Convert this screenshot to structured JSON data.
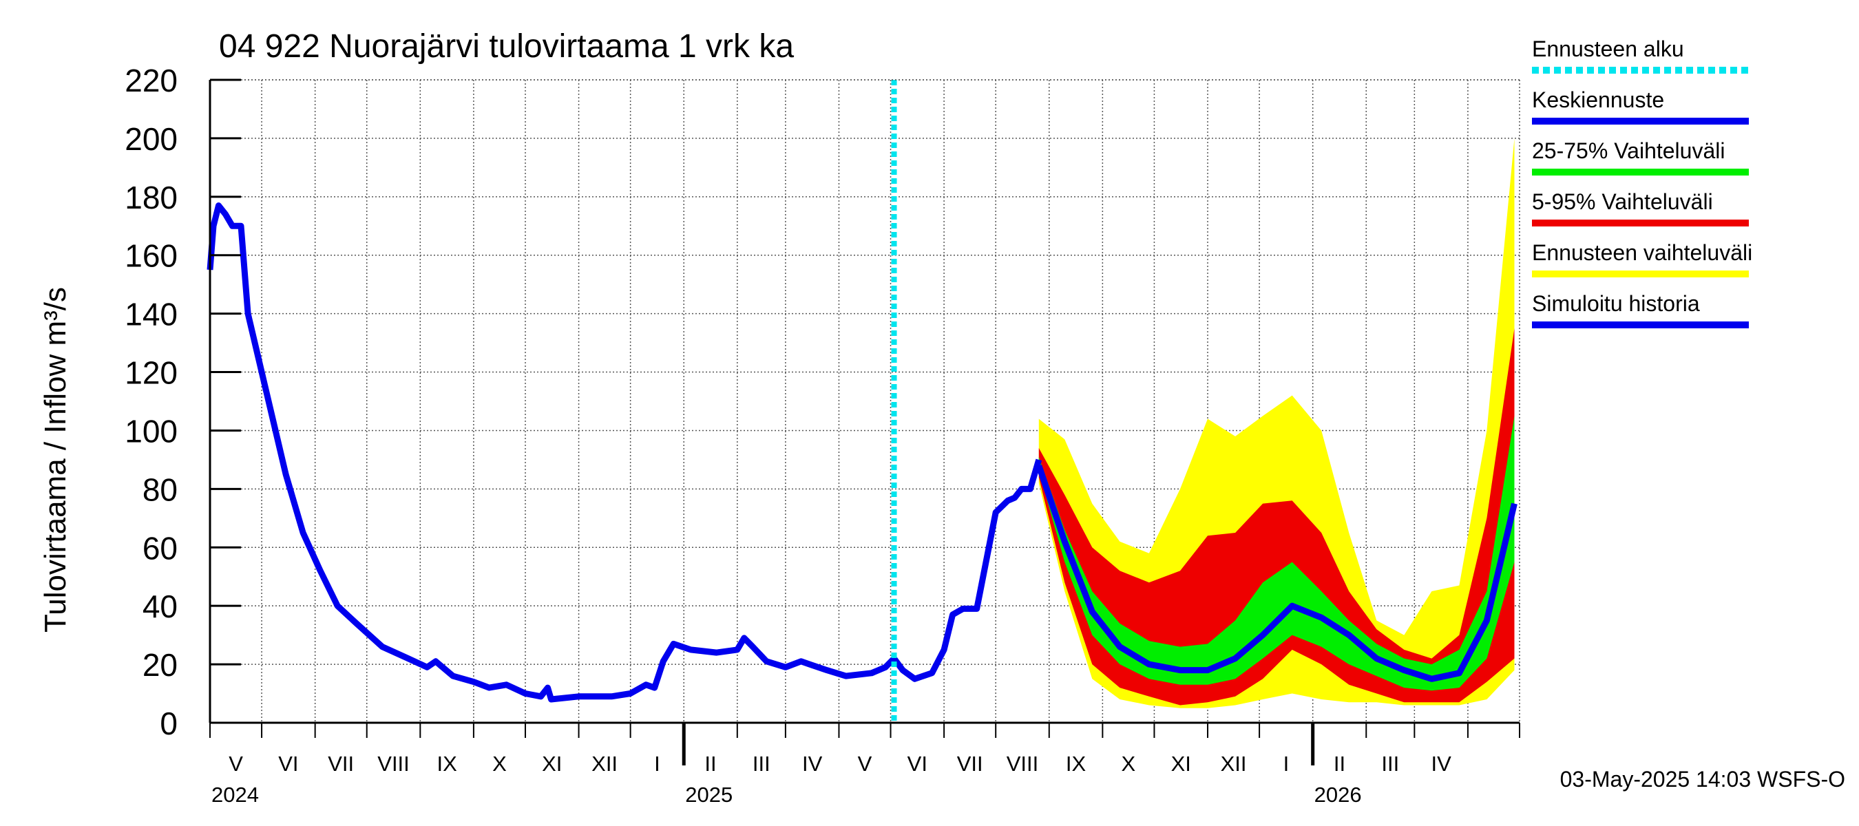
{
  "chart_data": {
    "type": "line",
    "title": "04 922 Nuorajärvi tulovirtaama 1 vrk ka",
    "ylabel": "Tulovirtaama / Inflow    m³/s",
    "ylim": [
      0,
      220
    ],
    "yticks": [
      0,
      20,
      40,
      60,
      80,
      100,
      120,
      140,
      160,
      180,
      200,
      220
    ],
    "xlim": [
      "2024-04-01",
      "2026-05-01"
    ],
    "grid": true,
    "legend_placement": "right",
    "month_labels": [
      "V",
      "VI",
      "VII",
      "VIII",
      "IX",
      "X",
      "XI",
      "XII",
      "I",
      "II",
      "III",
      "IV",
      "V",
      "VI",
      "VII",
      "VIII",
      "IX",
      "X",
      "XI",
      "XII",
      "I",
      "II",
      "III",
      "IV"
    ],
    "year_labels": [
      "2024",
      "2025",
      "2026"
    ],
    "forecast_start": "2025-05-03",
    "footer": "03-May-2025 14:03 WSFS-O",
    "legend": [
      {
        "label": "Ennusteen alku",
        "color": "#00e5ee",
        "style": "dotted"
      },
      {
        "label": "Keskiennuste",
        "color": "#0000ee",
        "style": "solid"
      },
      {
        "label": "25-75% Vaihteluväli",
        "color": "#00ee00",
        "style": "solid"
      },
      {
        "label": "5-95% Vaihteluväli",
        "color": "#ee0000",
        "style": "solid"
      },
      {
        "label": "Ennusteen vaihteluväli",
        "color": "#ffff00",
        "style": "solid"
      },
      {
        "label": "Simuloitu historia",
        "color": "#0000ee",
        "style": "solid"
      }
    ],
    "history": {
      "name": "Simuloitu historia",
      "color": "#0000ee",
      "points": [
        [
          "2024-04-01",
          155
        ],
        [
          "2024-04-03",
          170
        ],
        [
          "2024-04-06",
          177
        ],
        [
          "2024-04-10",
          174
        ],
        [
          "2024-04-14",
          170
        ],
        [
          "2024-04-19",
          170
        ],
        [
          "2024-04-23",
          140
        ],
        [
          "2024-05-05",
          110
        ],
        [
          "2024-05-15",
          85
        ],
        [
          "2024-05-25",
          65
        ],
        [
          "2024-06-04",
          52
        ],
        [
          "2024-06-14",
          40
        ],
        [
          "2024-06-25",
          34
        ],
        [
          "2024-07-10",
          26
        ],
        [
          "2024-07-25",
          22
        ],
        [
          "2024-08-05",
          19
        ],
        [
          "2024-08-10",
          21
        ],
        [
          "2024-08-20",
          16
        ],
        [
          "2024-09-01",
          14
        ],
        [
          "2024-09-10",
          12
        ],
        [
          "2024-09-20",
          13
        ],
        [
          "2024-10-01",
          10
        ],
        [
          "2024-10-10",
          9
        ],
        [
          "2024-10-14",
          12
        ],
        [
          "2024-10-16",
          8
        ],
        [
          "2024-11-01",
          9
        ],
        [
          "2024-11-20",
          9
        ],
        [
          "2024-12-01",
          10
        ],
        [
          "2024-12-10",
          13
        ],
        [
          "2024-12-15",
          12
        ],
        [
          "2024-12-20",
          21
        ],
        [
          "2024-12-26",
          27
        ],
        [
          "2025-01-05",
          25
        ],
        [
          "2025-01-20",
          24
        ],
        [
          "2025-02-01",
          25
        ],
        [
          "2025-02-05",
          29
        ],
        [
          "2025-02-10",
          26
        ],
        [
          "2025-02-18",
          21
        ],
        [
          "2025-03-01",
          19
        ],
        [
          "2025-03-10",
          21
        ],
        [
          "2025-03-15",
          20
        ],
        [
          "2025-03-25",
          18
        ],
        [
          "2025-04-05",
          16
        ],
        [
          "2025-04-20",
          17
        ],
        [
          "2025-04-28",
          19
        ],
        [
          "2025-05-03",
          22
        ],
        [
          "2025-05-08",
          18
        ],
        [
          "2025-05-15",
          15
        ],
        [
          "2025-05-25",
          17
        ],
        [
          "2025-06-01",
          25
        ],
        [
          "2025-06-06",
          37
        ],
        [
          "2025-06-12",
          39
        ],
        [
          "2025-06-20",
          39
        ],
        [
          "2025-06-27",
          60
        ],
        [
          "2025-07-01",
          72
        ],
        [
          "2025-07-08",
          76
        ],
        [
          "2025-07-12",
          77
        ],
        [
          "2025-07-16",
          80
        ],
        [
          "2025-07-21",
          80
        ],
        [
          "2025-07-24",
          86
        ],
        [
          "2025-07-26",
          90
        ]
      ]
    },
    "forecast": {
      "x": [
        "2025-07-26",
        "2025-08-10",
        "2025-08-26",
        "2025-09-11",
        "2025-09-28",
        "2025-10-16",
        "2025-11-01",
        "2025-11-17",
        "2025-12-03",
        "2025-12-20",
        "2026-01-06",
        "2026-01-22",
        "2026-02-07",
        "2026-02-23",
        "2026-03-11",
        "2026-03-27",
        "2026-04-12",
        "2026-04-28"
      ],
      "median": [
        88,
        62,
        38,
        26,
        20,
        18,
        18,
        22,
        30,
        40,
        36,
        30,
        22,
        18,
        15,
        17,
        35,
        75
      ],
      "p25": [
        86,
        55,
        30,
        20,
        15,
        13,
        13,
        15,
        22,
        30,
        26,
        20,
        16,
        12,
        11,
        12,
        22,
        55
      ],
      "p75": [
        91,
        66,
        45,
        34,
        28,
        26,
        27,
        35,
        48,
        55,
        45,
        35,
        27,
        22,
        20,
        25,
        45,
        105
      ],
      "p5": [
        84,
        48,
        20,
        12,
        9,
        6,
        7,
        9,
        15,
        25,
        20,
        13,
        10,
        7,
        7,
        7,
        14,
        22
      ],
      "p95": [
        94,
        78,
        60,
        52,
        48,
        52,
        64,
        65,
        75,
        76,
        65,
        45,
        32,
        25,
        22,
        30,
        70,
        135
      ],
      "min": [
        82,
        45,
        15,
        8,
        6,
        5,
        5,
        6,
        8,
        10,
        8,
        7,
        7,
        6,
        6,
        6,
        8,
        18
      ],
      "max": [
        104,
        97,
        75,
        62,
        58,
        80,
        104,
        98,
        105,
        112,
        100,
        65,
        35,
        30,
        45,
        47,
        100,
        200
      ]
    }
  }
}
